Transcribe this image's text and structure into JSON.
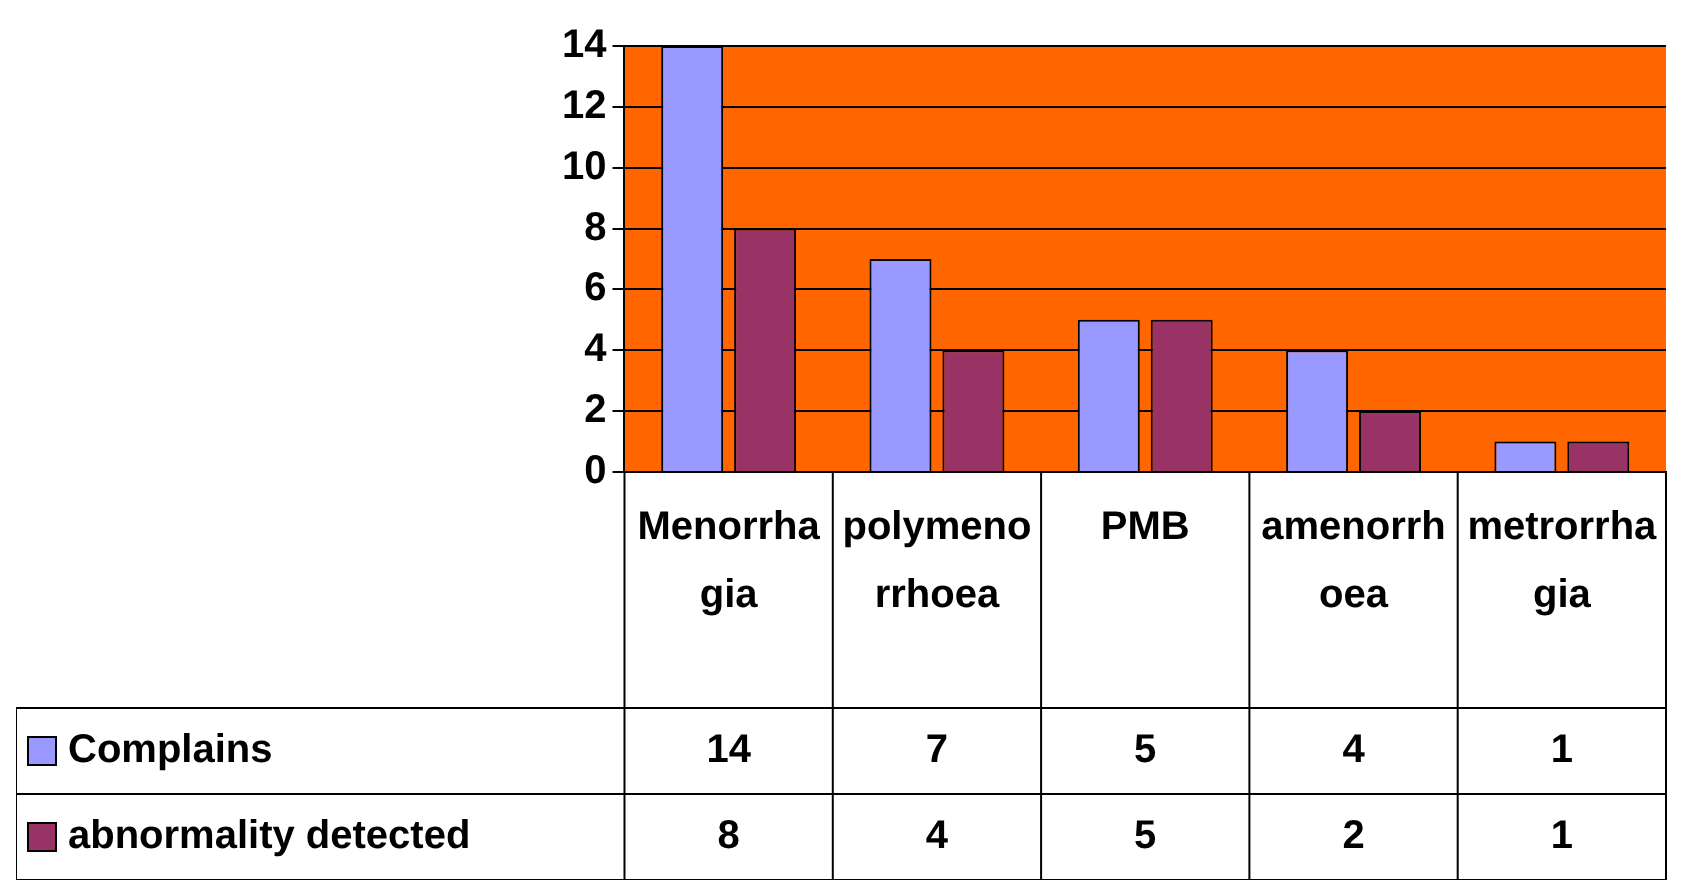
{
  "chart_data": {
    "type": "bar",
    "categories": [
      "Menorrhagia",
      "polymenorrhoea",
      "PMB",
      "amenorrhoea",
      "metrorrhagia"
    ],
    "series": [
      {
        "name": "Complains",
        "color": "#9999ff",
        "values": [
          14,
          7,
          5,
          4,
          1
        ]
      },
      {
        "name": "abnormality detected",
        "color": "#993366",
        "values": [
          8,
          4,
          5,
          2,
          1
        ]
      }
    ],
    "ylim": [
      0,
      14
    ],
    "yticks": [
      0,
      2,
      4,
      6,
      8,
      10,
      12,
      14
    ],
    "grid": "y",
    "legend": "bottom",
    "data_labels": true
  }
}
